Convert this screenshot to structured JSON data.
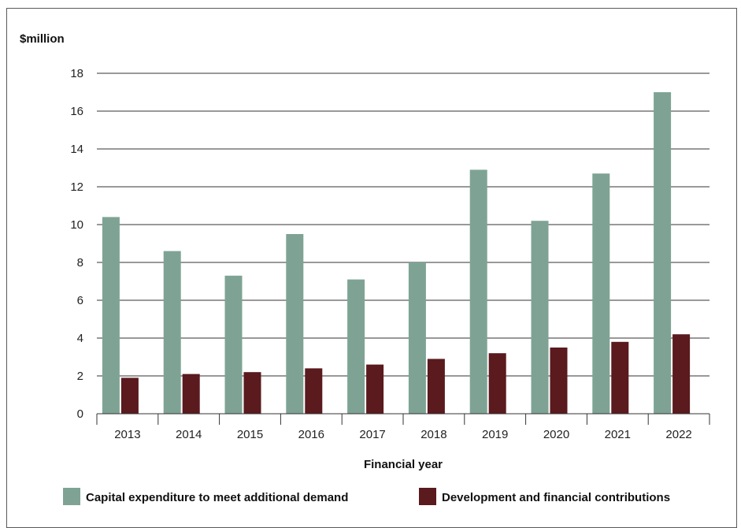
{
  "chart_data": {
    "type": "bar",
    "title": "",
    "ylabel": "$million",
    "xlabel": "Financial year",
    "ylim": [
      0,
      18
    ],
    "yticks": [
      0,
      2,
      4,
      6,
      8,
      10,
      12,
      14,
      16,
      18
    ],
    "grid": "horizontal",
    "legend_position": "bottom",
    "categories": [
      "2013",
      "2014",
      "2015",
      "2016",
      "2017",
      "2018",
      "2019",
      "2020",
      "2021",
      "2022"
    ],
    "series": [
      {
        "name": "Capital expenditure to meet additional demand",
        "color": "#7ea394",
        "values": [
          10.4,
          8.6,
          7.3,
          9.5,
          7.1,
          8.0,
          12.9,
          10.2,
          12.7,
          17.0
        ]
      },
      {
        "name": "Development and financial contributions",
        "color": "#5a1a1e",
        "values": [
          1.9,
          2.1,
          2.2,
          2.4,
          2.6,
          2.9,
          3.2,
          3.5,
          3.8,
          4.2
        ]
      }
    ]
  }
}
